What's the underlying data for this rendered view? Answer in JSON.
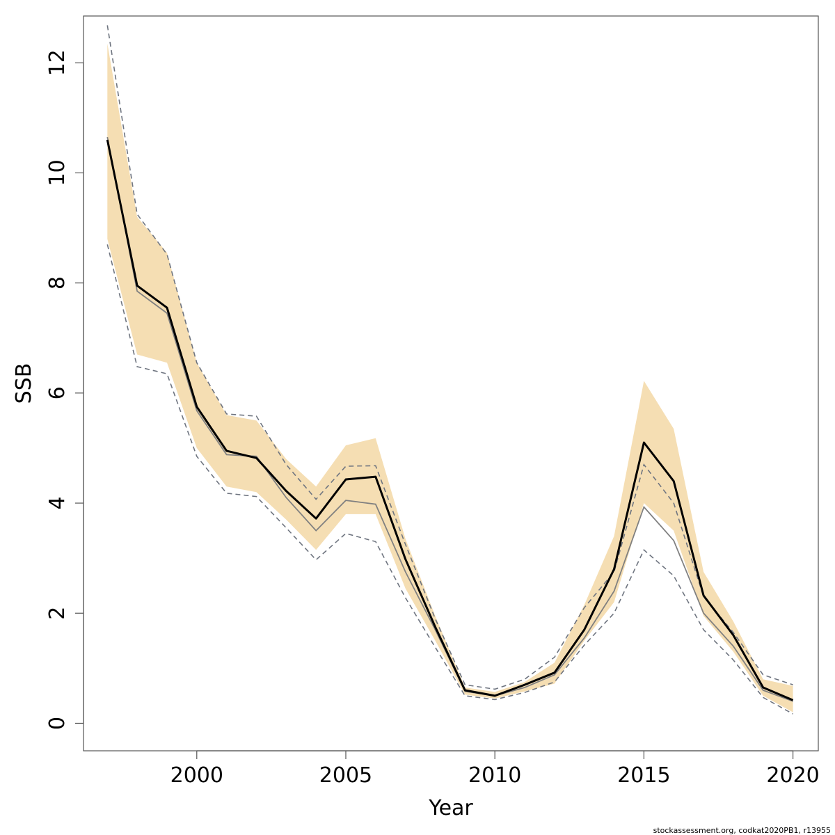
{
  "chart_data": {
    "type": "line",
    "xlabel": "Year",
    "ylabel": "SSB",
    "xlim": [
      1996.2,
      2020.85
    ],
    "ylim": [
      -0.5,
      12.85
    ],
    "x_ticks": [
      2000,
      2005,
      2010,
      2015,
      2020
    ],
    "y_ticks": [
      0,
      2,
      4,
      6,
      8,
      10,
      12
    ],
    "grid": false,
    "legend": "none",
    "colors": {
      "band": "#f5deb3",
      "estimate": "#000000",
      "previous": "#808080",
      "previous_ci": "#6f7580",
      "frame": "#555555"
    },
    "x": [
      1997,
      1998,
      1999,
      2000,
      2001,
      2002,
      2003,
      2004,
      2005,
      2006,
      2007,
      2008,
      2009,
      2010,
      2011,
      2012,
      2013,
      2014,
      2015,
      2016,
      2017,
      2018,
      2019,
      2020
    ],
    "series": [
      {
        "role": "confidence_band",
        "lower": [
          8.8,
          6.7,
          6.55,
          5.0,
          4.3,
          4.2,
          3.7,
          3.15,
          3.8,
          3.8,
          2.45,
          1.5,
          0.52,
          0.45,
          0.58,
          0.72,
          1.5,
          2.2,
          4.0,
          3.5,
          1.95,
          1.3,
          0.5,
          0.2
        ],
        "upper": [
          12.35,
          9.2,
          8.55,
          6.55,
          5.6,
          5.5,
          4.8,
          4.3,
          5.05,
          5.18,
          3.35,
          1.95,
          0.65,
          0.57,
          0.75,
          1.1,
          2.15,
          3.4,
          6.22,
          5.35,
          2.75,
          1.85,
          0.8,
          0.68
        ]
      },
      {
        "role": "estimate",
        "values": [
          10.6,
          7.95,
          7.55,
          5.75,
          4.95,
          4.82,
          4.22,
          3.72,
          4.43,
          4.48,
          2.98,
          1.75,
          0.6,
          0.5,
          0.7,
          0.92,
          1.7,
          2.8,
          5.1,
          4.4,
          2.32,
          1.6,
          0.65,
          0.42
        ]
      },
      {
        "role": "previous_estimate",
        "values": [
          10.65,
          7.85,
          7.45,
          5.68,
          4.88,
          4.85,
          4.1,
          3.5,
          4.05,
          3.98,
          2.75,
          1.7,
          0.58,
          0.5,
          0.65,
          0.88,
          1.55,
          2.4,
          3.93,
          3.32,
          2.0,
          1.4,
          0.6,
          0.4
        ]
      },
      {
        "role": "previous_estimate_ci",
        "lower": [
          8.7,
          6.48,
          6.35,
          4.85,
          4.18,
          4.12,
          3.55,
          2.97,
          3.45,
          3.3,
          2.28,
          1.38,
          0.5,
          0.43,
          0.56,
          0.75,
          1.42,
          2.0,
          3.15,
          2.68,
          1.7,
          1.15,
          0.47,
          0.17
        ],
        "upper": [
          12.68,
          9.25,
          8.52,
          6.55,
          5.62,
          5.58,
          4.7,
          4.07,
          4.67,
          4.68,
          3.25,
          1.9,
          0.7,
          0.62,
          0.8,
          1.2,
          2.1,
          2.75,
          4.7,
          4.0,
          2.3,
          1.65,
          0.88,
          0.7
        ]
      }
    ],
    "credit": "stockassessment.org, codkat2020PB1, r13955"
  }
}
